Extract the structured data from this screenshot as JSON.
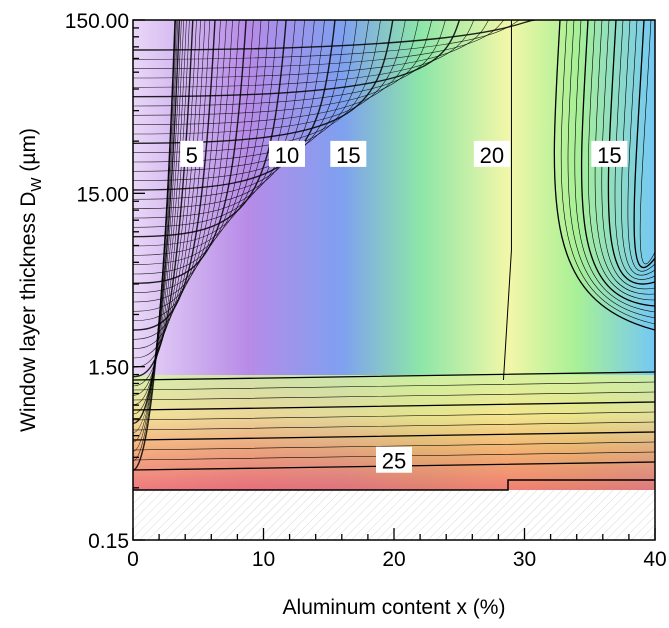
{
  "chart_data": {
    "type": "contour",
    "xlabel": "Aluminum content x (%)",
    "ylabel": "Window layer thickness D",
    "ylabel_subscript": "W",
    "ylabel_unit": " (µm)",
    "x_range": [
      0,
      40
    ],
    "y_range": [
      0.15,
      150
    ],
    "y_scale": "log",
    "x_ticks": [
      {
        "value": 0,
        "label": "0"
      },
      {
        "value": 10,
        "label": "10"
      },
      {
        "value": 20,
        "label": "20"
      },
      {
        "value": 30,
        "label": "30"
      },
      {
        "value": 40,
        "label": "40"
      }
    ],
    "y_ticks": [
      {
        "value": 0.15,
        "label": "0.15"
      },
      {
        "value": 1.5,
        "label": "1.50"
      },
      {
        "value": 15,
        "label": "15.00"
      },
      {
        "value": 150,
        "label": "150.00"
      }
    ],
    "contour_labels": [
      {
        "x": 4.5,
        "y": 25,
        "text": "5"
      },
      {
        "x": 11.8,
        "y": 25,
        "text": "10"
      },
      {
        "x": 16.5,
        "y": 25,
        "text": "15"
      },
      {
        "x": 27.5,
        "y": 25,
        "text": "20"
      },
      {
        "x": 36.5,
        "y": 25,
        "text": "15"
      },
      {
        "x": 20,
        "y": 0.43,
        "text": "25"
      }
    ],
    "colors": {
      "low": "#b78be8",
      "mid_low": "#6e8ff0",
      "mid": "#66d8ff",
      "mid_high": "#a8f096",
      "high": "#f7f3a0",
      "top": "#f06a6a",
      "hatch": "#d9d9d9"
    }
  }
}
